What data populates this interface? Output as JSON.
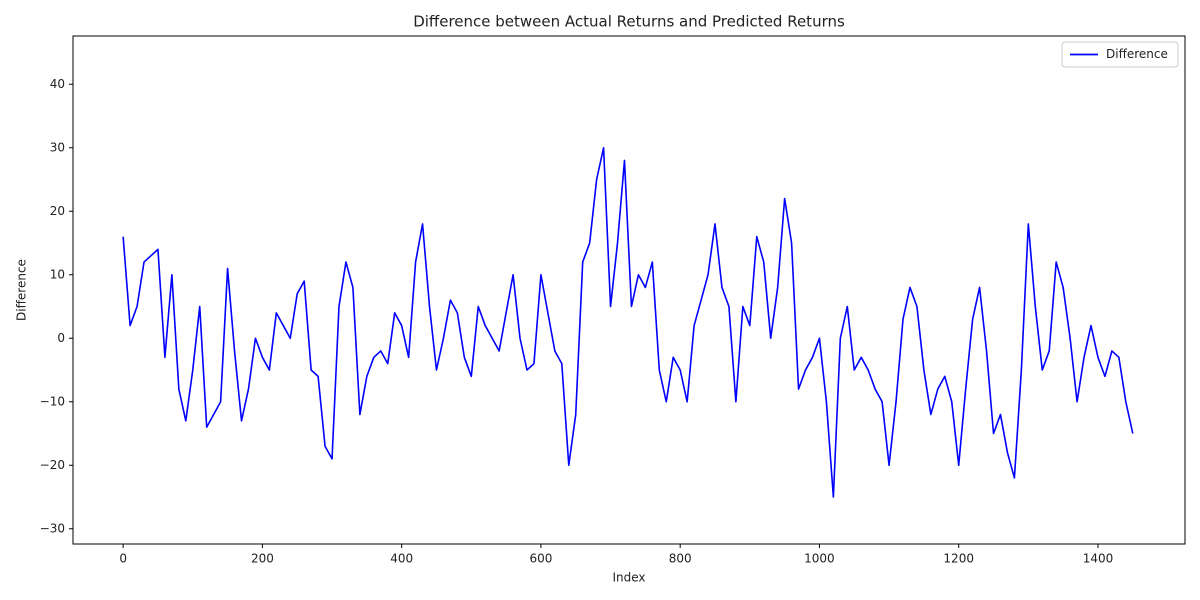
{
  "chart_data": {
    "type": "line",
    "title": "Difference between Actual Returns and Predicted Returns",
    "xlabel": "Index",
    "ylabel": "Difference",
    "x": [
      0,
      10,
      20,
      30,
      40,
      50,
      60,
      70,
      80,
      90,
      100,
      110,
      120,
      130,
      140,
      150,
      160,
      170,
      180,
      190,
      200,
      210,
      220,
      230,
      240,
      250,
      260,
      270,
      280,
      290,
      300,
      310,
      320,
      330,
      340,
      350,
      360,
      370,
      380,
      390,
      400,
      410,
      420,
      430,
      440,
      450,
      460,
      470,
      480,
      490,
      500,
      510,
      520,
      530,
      540,
      550,
      560,
      570,
      580,
      590,
      600,
      610,
      620,
      630,
      640,
      650,
      660,
      670,
      680,
      690,
      700,
      710,
      720,
      730,
      740,
      750,
      760,
      770,
      780,
      790,
      800,
      810,
      820,
      830,
      840,
      850,
      860,
      870,
      880,
      890,
      900,
      910,
      920,
      930,
      940,
      950,
      960,
      970,
      980,
      990,
      1000,
      1010,
      1020,
      1030,
      1040,
      1050,
      1060,
      1070,
      1080,
      1090,
      1100,
      1110,
      1120,
      1130,
      1140,
      1150,
      1160,
      1170,
      1180,
      1190,
      1200,
      1210,
      1220,
      1230,
      1240,
      1250,
      1260,
      1270,
      1280,
      1290,
      1300,
      1310,
      1320,
      1330,
      1340,
      1350,
      1360,
      1370,
      1380,
      1390,
      1400,
      1410,
      1420,
      1430,
      1440,
      1450
    ],
    "series": [
      {
        "name": "Difference",
        "color": "#0000ff",
        "values": [
          16,
          2,
          5,
          12,
          13,
          14,
          -3,
          10,
          -8,
          -13,
          -5,
          5,
          -14,
          -12,
          -10,
          11,
          -2,
          -13,
          -8,
          0,
          -3,
          -5,
          4,
          2,
          0,
          7,
          9,
          -5,
          -6,
          -17,
          -19,
          5,
          12,
          8,
          -12,
          -6,
          -3,
          -2,
          -4,
          4,
          2,
          -3,
          12,
          18,
          5,
          -5,
          0,
          6,
          4,
          -3,
          -6,
          5,
          2,
          0,
          -2,
          4,
          10,
          0,
          -5,
          -4,
          10,
          4,
          -2,
          -4,
          -20,
          -12,
          12,
          15,
          25,
          30,
          5,
          15,
          28,
          5,
          10,
          8,
          12,
          -5,
          -10,
          -3,
          -5,
          -10,
          2,
          6,
          10,
          18,
          8,
          5,
          -10,
          5,
          2,
          16,
          12,
          0,
          8,
          22,
          15,
          -8,
          -5,
          -3,
          0,
          -10,
          -25,
          0,
          5,
          -5,
          -3,
          -5,
          -8,
          -10,
          -20,
          -10,
          3,
          8,
          5,
          -5,
          -12,
          -8,
          -6,
          -10,
          -20,
          -8,
          3,
          8,
          -2,
          -15,
          -12,
          -18,
          -22,
          -5,
          18,
          5,
          -5,
          -2,
          12,
          8,
          0,
          -10,
          -3,
          2,
          -3,
          -6,
          -2,
          -3,
          -10,
          -15
        ]
      }
    ],
    "xlim": [
      -72,
      1525
    ],
    "xticks": [
      0,
      200,
      400,
      600,
      800,
      1000,
      1200,
      1400
    ],
    "ylim": [
      -32.4,
      47.6
    ],
    "yticks": [
      {
        "value": -30,
        "label": "−30"
      },
      {
        "value": -20,
        "label": "−20"
      },
      {
        "value": -10,
        "label": "−10"
      },
      0,
      10,
      20,
      30,
      40
    ],
    "legend": "upper right"
  }
}
